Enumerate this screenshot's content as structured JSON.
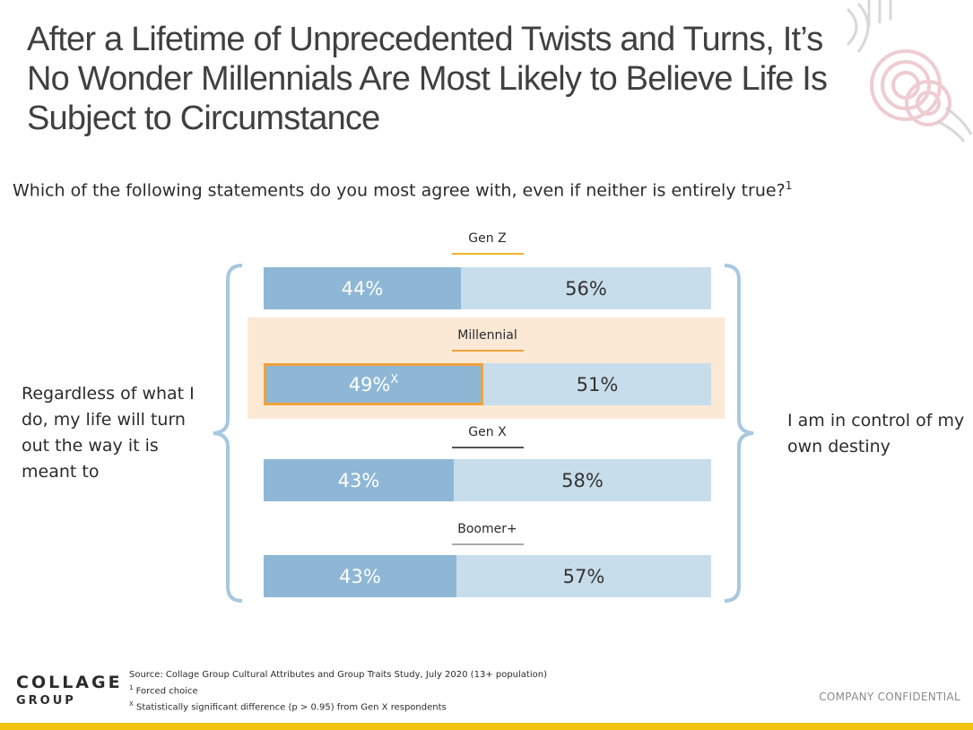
{
  "title": "After a Lifetime of Unprecedented Twists and Turns, It’s No Wonder Millennials Are Most Likely to Believe Life Is Subject to Circumstance",
  "question": {
    "text": "Which of the following statements do you most agree with, even if neither is entirely true?",
    "sup": "1"
  },
  "left_statement": "Regardless of what I do, my life will turn out the way it is meant to",
  "right_statement": "I am in control of my own destiny",
  "colors": {
    "left_bar": "#8eb7d5",
    "right_bar": "#c8ddeb",
    "highlight_bg": "#fbe9d6",
    "highlight_border": "#f0a23b",
    "brace": "#a9c8df",
    "bottom_bar": "#f1c40f"
  },
  "chart_data": {
    "type": "bar",
    "orientation": "horizontal-stacked",
    "categories": [
      "Gen Z",
      "Millennial",
      "Gen X",
      "Boomer+"
    ],
    "underline_colors": [
      "#f0b429",
      "#f0a23b",
      "#555555",
      "#aaaaaa"
    ],
    "series": [
      {
        "values": [
          44,
          49,
          43,
          43
        ],
        "labels": [
          "44%",
          "49%",
          "43%",
          "43%"
        ],
        "label_sups": [
          "",
          "X",
          "",
          ""
        ]
      },
      {
        "values": [
          56,
          51,
          58,
          57
        ],
        "labels": [
          "56%",
          "51%",
          "58%",
          "57%"
        ],
        "label_sups": [
          "",
          "",
          "",
          ""
        ]
      }
    ],
    "highlighted_category": "Millennial"
  },
  "footer": {
    "logo_line1": "COLLAGE",
    "logo_line2": "GROUP",
    "source": "Source: Collage Group Cultural Attributes and Group Traits Study, July 2020 (13+ population)",
    "note1_sup": "1",
    "note1": "Forced choice",
    "note2_sup": "X",
    "note2": "Statistically significant difference (p > 0.95) from Gen X respondents",
    "confidential": "COMPANY CONFIDENTIAL"
  }
}
